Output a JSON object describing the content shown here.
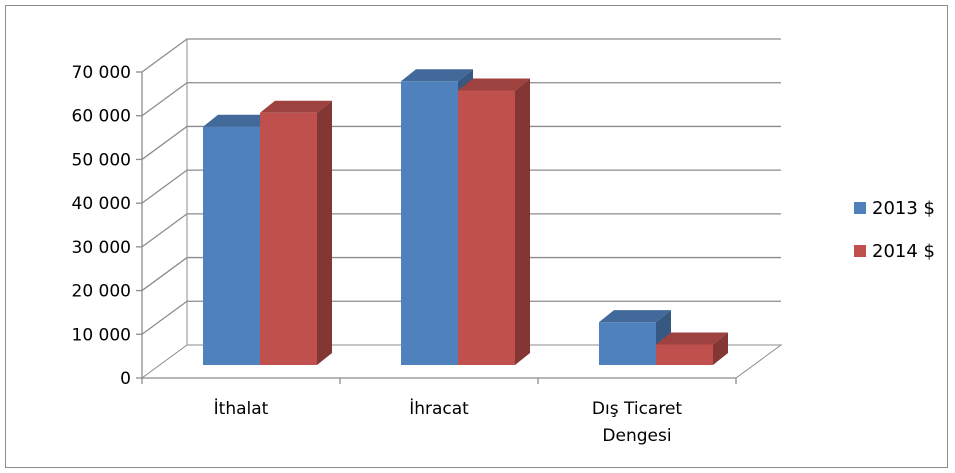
{
  "chart_data": {
    "type": "bar",
    "categories": [
      "İthalat",
      "İhracat",
      "Dış Ticaret Dengesi"
    ],
    "series": [
      {
        "name": "2013 $",
        "color": "#4F81BD",
        "values": [
          54500,
          64900,
          9800
        ]
      },
      {
        "name": "2014 $",
        "color": "#C0504D",
        "values": [
          57700,
          62800,
          4700
        ]
      }
    ],
    "yticks": [
      "0",
      "10 000",
      "20 000",
      "30 000",
      "40 000",
      "50 000",
      "60 000",
      "70 000"
    ],
    "ylim": [
      0,
      70000
    ],
    "grid": true,
    "three_d": true,
    "legend_position": "right"
  }
}
